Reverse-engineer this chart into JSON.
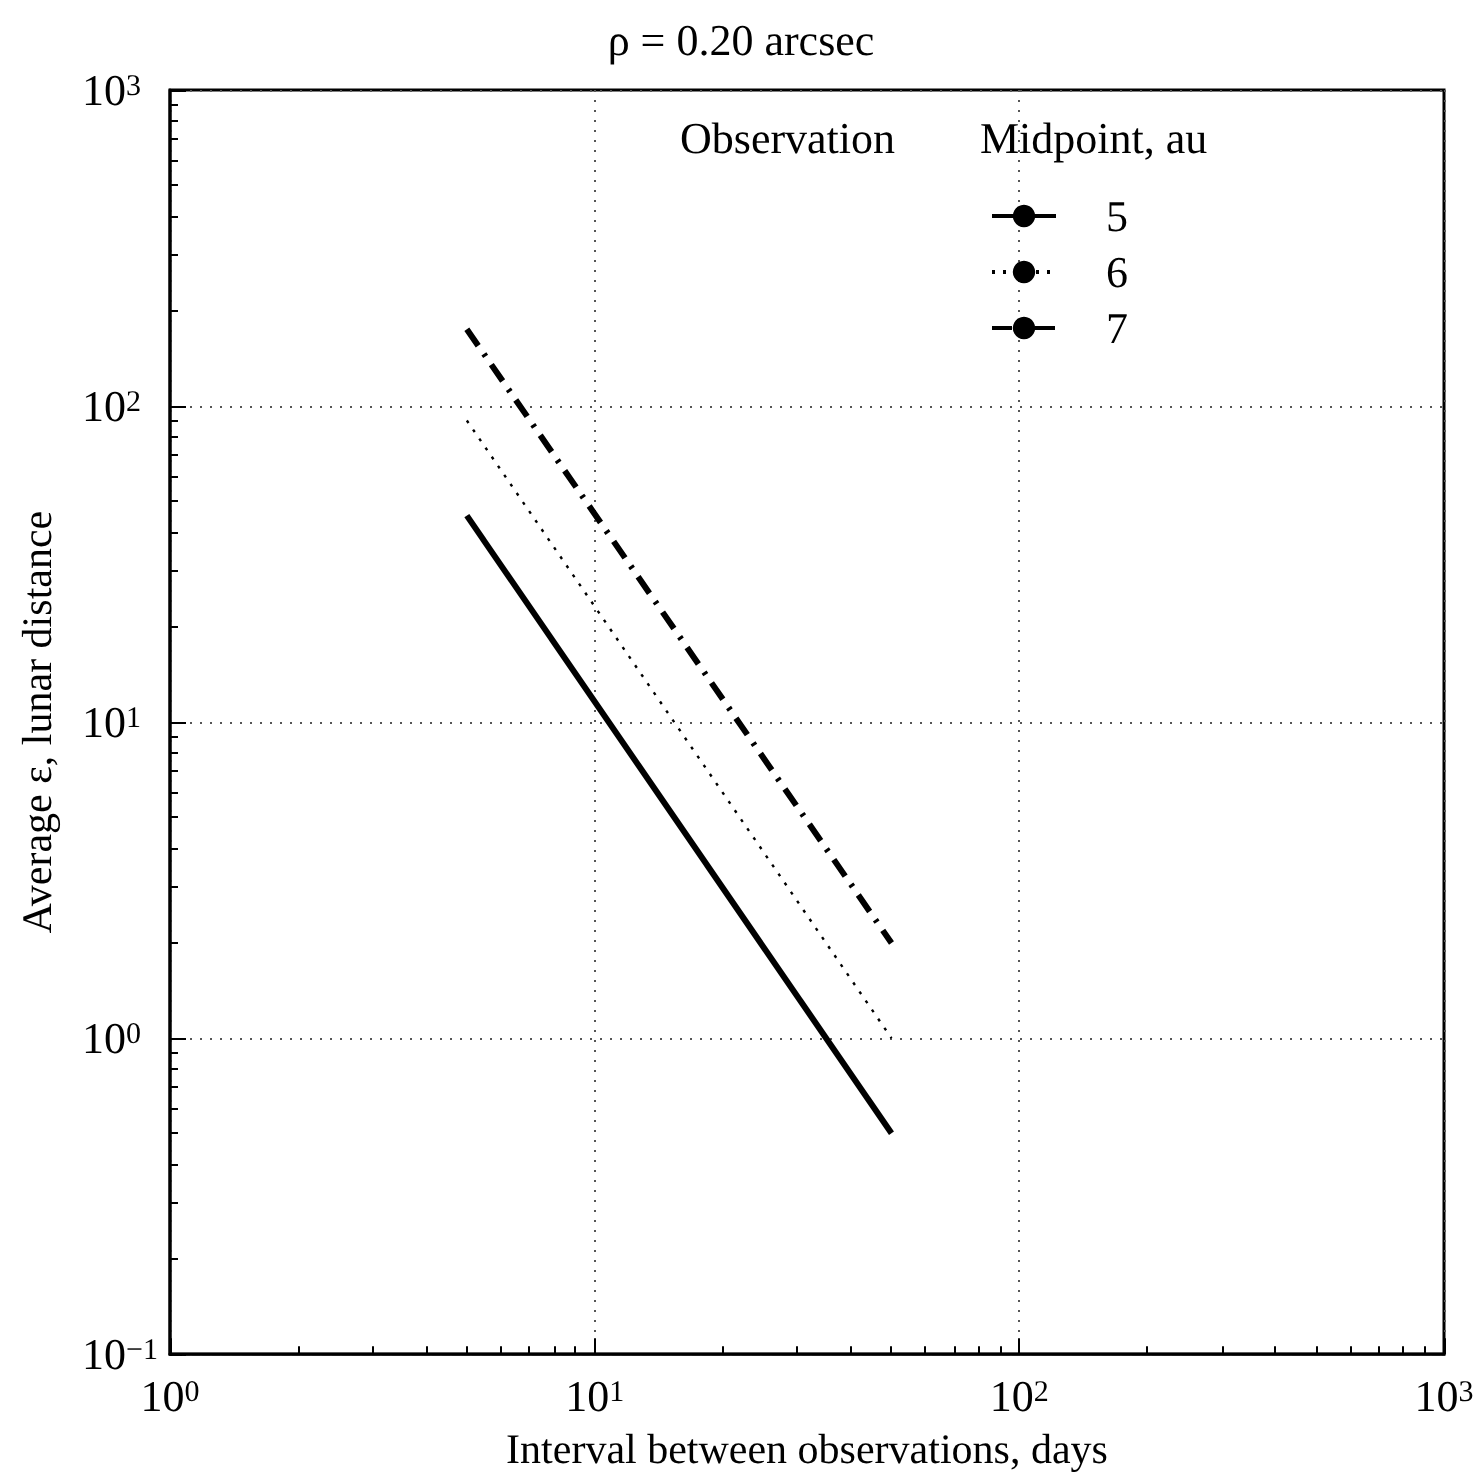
{
  "chart_data": {
    "type": "line",
    "title": "ρ = 0.20 arcsec",
    "xlabel": "Interval between observations, days",
    "ylabel": "Average ε, lunar distance",
    "legend_title": "Observation",
    "annotations": [
      "Midpoint, au"
    ],
    "log": "xy",
    "grid": true,
    "legend": "top",
    "marker": "none",
    "xlim": [
      1,
      1000
    ],
    "xticks": [
      {
        "value": 1,
        "label": "10$^{0}$"
      },
      {
        "value": 10,
        "label": "10$^{1}$"
      },
      {
        "value": 100,
        "label": "10$^{2}$"
      },
      {
        "value": 1000,
        "label": "10$^{3}$"
      }
    ],
    "ylim": [
      0.1,
      1000
    ],
    "yticks": [
      {
        "value": 0.1,
        "label": "10$^{−1}$"
      },
      {
        "value": 1,
        "label": "10$^{0}$"
      },
      {
        "value": 10,
        "label": "10$^{1}$"
      },
      {
        "value": 100,
        "label": "10$^{2}$"
      },
      {
        "value": 1000,
        "label": "10$^{3}$"
      }
    ],
    "x": [
      5,
      50
    ],
    "series": [
      {
        "name": "5",
        "color": "#000000",
        "line_style": "solid",
        "values": [
          45,
          0.5
        ]
      },
      {
        "name": "6",
        "color": "#000000",
        "line_style": "dotted",
        "values": [
          90,
          1.0
        ]
      },
      {
        "name": "7",
        "color": "#000000",
        "line_style": "dashdot",
        "values": [
          175,
          2.0
        ]
      }
    ]
  }
}
